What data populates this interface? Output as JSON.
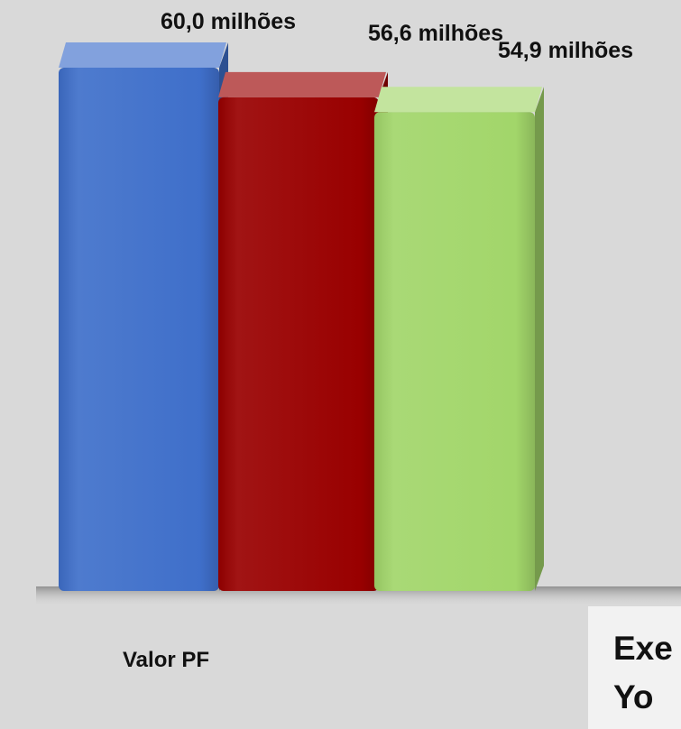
{
  "chart_data": {
    "type": "bar",
    "categories": [
      "Valor PF"
    ],
    "series": [
      {
        "values": [
          60.0
        ],
        "color": "#3f6fca",
        "value_label": "60,0 milhões"
      },
      {
        "values": [
          56.6
        ],
        "color": "#990000",
        "value_label": "56,6 milhões"
      },
      {
        "values": [
          54.9
        ],
        "color": "#a2d66a",
        "value_label": "54,9 milhões"
      }
    ],
    "title": "",
    "xlabel": "",
    "ylabel": "",
    "ylim": [
      0,
      60
    ],
    "style": "3d-columns",
    "grid": false,
    "legend": "none"
  },
  "note": {
    "text": "Exe\nYo"
  }
}
